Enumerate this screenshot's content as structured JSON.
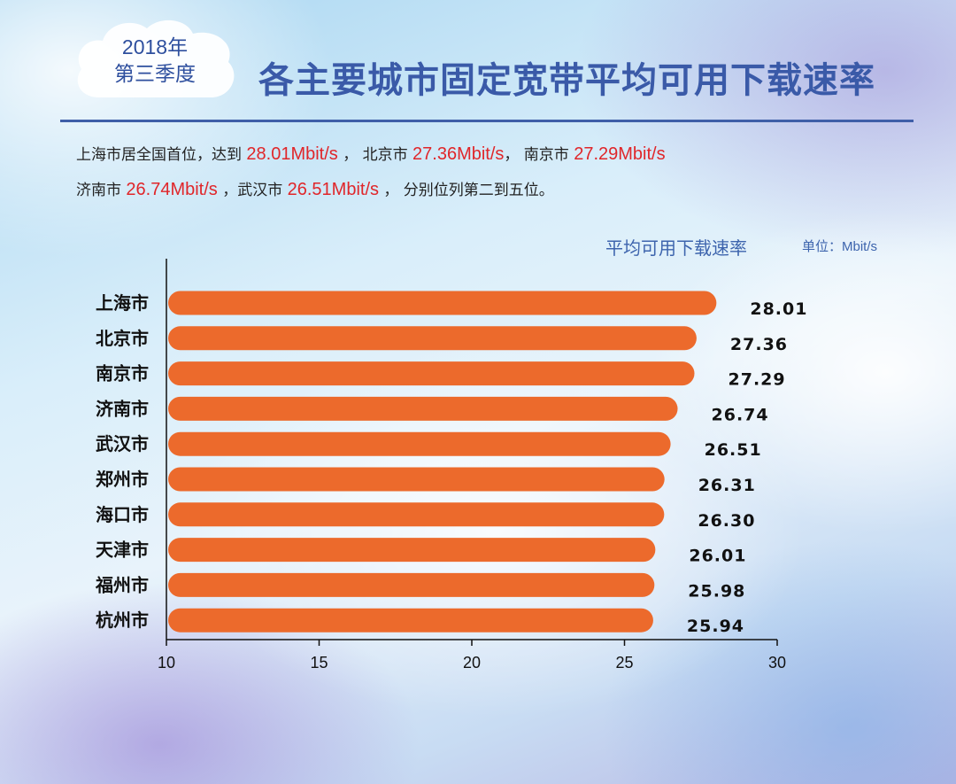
{
  "badge": {
    "year": "2018年",
    "quarter": "第三季度"
  },
  "title": "各主要城市固定宽带平均可用下载速率",
  "summary": {
    "l1_a": "上海市居全国首位，达到 ",
    "l1_v1": "28.01Mbit/s",
    "l1_b": " ， 北京市 ",
    "l1_v2": "27.36Mbit/s",
    "l1_c": "， 南京市 ",
    "l1_v3": "27.29Mbit/s",
    "l2_a": "济南市 ",
    "l2_v1": "26.74Mbit/s",
    "l2_b": " ，武汉市 ",
    "l2_v2": "26.51Mbit/s",
    "l2_c": " ， 分别位列第二到五位。"
  },
  "colors": {
    "bar": "#ec6a2c",
    "axis": "#111111",
    "title": "#3a5aa8",
    "highlight": "#e0262a"
  },
  "chart_data": {
    "type": "bar",
    "orientation": "horizontal",
    "title": "平均可用下载速率",
    "unit_label": "单位：Mbit/s",
    "categories": [
      "上海市",
      "北京市",
      "南京市",
      "济南市",
      "武汉市",
      "郑州市",
      "海口市",
      "天津市",
      "福州市",
      "杭州市"
    ],
    "values": [
      28.01,
      27.36,
      27.29,
      26.74,
      26.51,
      26.31,
      26.3,
      26.01,
      25.98,
      25.94
    ],
    "value_labels": [
      "28.01",
      "27.36",
      "27.29",
      "26.74",
      "26.51",
      "26.31",
      "26.30",
      "26.01",
      "25.98",
      "25.94"
    ],
    "xlim": [
      10,
      30
    ],
    "xticks": [
      "10",
      "15",
      "20",
      "25",
      "30"
    ],
    "grid": false
  }
}
